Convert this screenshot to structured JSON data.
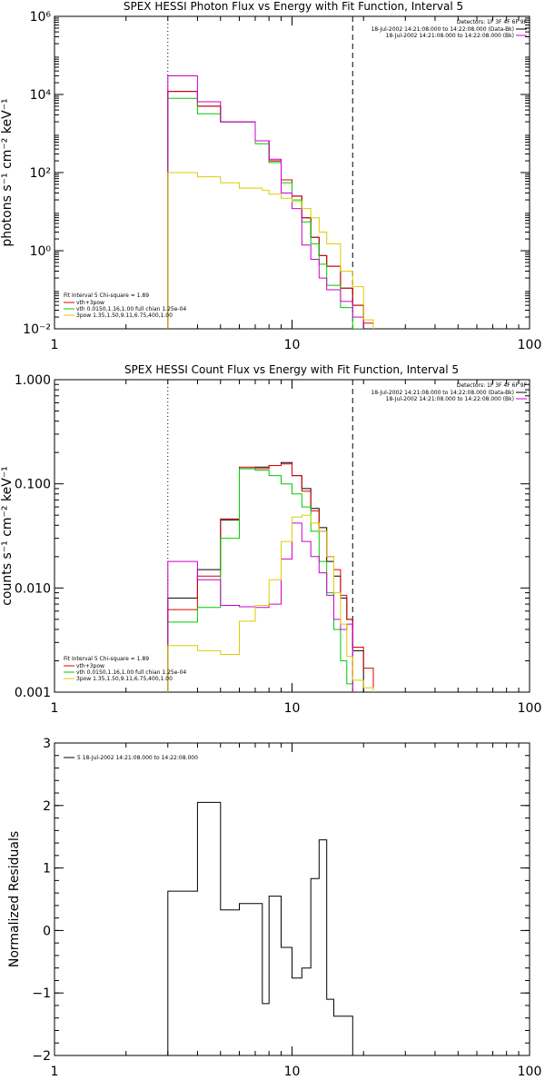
{
  "chart_data": [
    {
      "type": "line",
      "title": "SPEX HESSI Photon Flux vs Energy with Fit Function, Interval 5",
      "ylabel": "photons s⁻¹ cm⁻² keV⁻¹",
      "xscale": "log",
      "yscale": "log",
      "xlim": [
        1,
        100
      ],
      "ylim": [
        0.01,
        1000000
      ],
      "x_ticks": [
        "1",
        "10",
        "100"
      ],
      "y_ticks": [
        "10⁻²",
        "10⁰",
        "10²",
        "10⁴",
        "10⁶"
      ],
      "vlines": [
        {
          "x": 3.0,
          "style": "dotted"
        },
        {
          "x": 18.0,
          "style": "dashed"
        }
      ],
      "legend_right": {
        "header": "Detectors: 1F 3F 4F 6F 9F",
        "entries": [
          {
            "label": "18-Jul-2002 14:21:08.000 to 14:22:08.000 (Data-Bk)",
            "color": "#000000"
          },
          {
            "label": "18-Jul-2002 14:21:08.000 to 14:22:08.000 (Bk)",
            "color": "#cc00cc"
          }
        ]
      },
      "legend_left": {
        "header": "Fit Interval 5   Chi-square = 1.89",
        "entries": [
          {
            "label": "vth+3pow",
            "color": "#dd0000"
          },
          {
            "label": "vth 0.0150,1.16,1.00  full chian 1.25e-04",
            "color": "#00cc00"
          },
          {
            "label": "3pow 1.35,1.50,9.11,6.75,400,1.00",
            "color": "#ddcc00"
          }
        ]
      },
      "bin_edges": [
        3.0,
        3.5,
        4.0,
        5.0,
        6.0,
        7.0,
        7.5,
        8.0,
        9.0,
        10.0,
        11.0,
        12.0,
        13.0,
        14.0,
        16.0,
        18.0,
        20.0,
        22.0
      ],
      "series": [
        {
          "color": "#000000",
          "values": [
            12000,
            12000,
            5000,
            2000,
            2000,
            650,
            650,
            200,
            65,
            25,
            7,
            2.2,
            0.75,
            0.4,
            0.11,
            0.04,
            null
          ]
        },
        {
          "color": "#dd0000",
          "values": [
            12000,
            12000,
            5000,
            2000,
            2000,
            650,
            650,
            200,
            65,
            25,
            7,
            2.2,
            0.75,
            0.4,
            0.11,
            0.04,
            0.014
          ]
        },
        {
          "color": "#00cc00",
          "values": [
            8000,
            8000,
            3200,
            2000,
            2000,
            550,
            550,
            180,
            55,
            20,
            5.5,
            1.5,
            0.45,
            0.13,
            0.035,
            0.009,
            null
          ]
        },
        {
          "color": "#cc00cc",
          "values": [
            30000,
            30000,
            6500,
            2000,
            2000,
            650,
            650,
            220,
            30,
            12,
            1.4,
            0.6,
            0.2,
            0.1,
            0.05,
            0.02,
            null
          ]
        },
        {
          "color": "#ddcc00",
          "values": [
            100,
            100,
            78,
            55,
            40,
            40,
            35,
            28,
            22,
            18,
            12,
            7,
            3,
            1.5,
            0.3,
            0.12,
            0.017
          ]
        }
      ]
    },
    {
      "type": "line",
      "title": "SPEX HESSI Count Flux vs Energy with Fit Function, Interval 5",
      "ylabel": "counts s⁻¹ cm⁻² keV⁻¹",
      "xscale": "log",
      "yscale": "log",
      "xlim": [
        1,
        100
      ],
      "ylim": [
        0.001,
        1.0
      ],
      "x_ticks": [
        "1",
        "10",
        "100"
      ],
      "y_ticks": [
        "0.001",
        "0.010",
        "0.100",
        "1.000"
      ],
      "vlines": [
        {
          "x": 3.0,
          "style": "dotted"
        },
        {
          "x": 18.0,
          "style": "dashed"
        }
      ],
      "legend_right": {
        "header": "Detectors: 1F 3F 4F 6F 9F",
        "entries": [
          {
            "label": "18-Jul-2002 14:21:08.000 to 14:22:08.000 (Data-Bk)",
            "color": "#000000"
          },
          {
            "label": "18-Jul-2002 14:21:08.000 to 14:22:08.000 (Bk)",
            "color": "#cc00cc"
          }
        ]
      },
      "legend_left": {
        "header": "Fit Interval 5   Chi-square = 1.89",
        "entries": [
          {
            "label": "vth+3pow",
            "color": "#dd0000"
          },
          {
            "label": "vth 0.0150,1.16,1.00  full chian 1.25e-04",
            "color": "#00cc00"
          },
          {
            "label": "3pow 1.35,1.50,9.11,6.75,400,1.00",
            "color": "#ddcc00"
          }
        ]
      },
      "bin_edges": [
        3.0,
        4.0,
        5.0,
        6.0,
        7.0,
        8.0,
        9.0,
        10.0,
        11.0,
        12.0,
        13.0,
        14.0,
        15.0,
        16.0,
        17.0,
        18.0,
        20.0,
        22.0
      ],
      "series": [
        {
          "color": "#000000",
          "values": [
            0.008,
            0.015,
            0.045,
            0.14,
            0.145,
            0.15,
            0.16,
            0.12,
            0.09,
            0.058,
            0.038,
            0.018,
            0.013,
            0.008,
            0.005,
            0.0025,
            null
          ]
        },
        {
          "color": "#dd0000",
          "values": [
            0.0062,
            0.013,
            0.046,
            0.145,
            0.14,
            0.15,
            0.155,
            0.12,
            0.085,
            0.055,
            0.035,
            0.02,
            0.015,
            0.0085,
            0.005,
            0.0027,
            0.0017
          ]
        },
        {
          "color": "#00cc00",
          "values": [
            0.0047,
            0.0065,
            0.03,
            0.14,
            0.135,
            0.12,
            0.1,
            0.08,
            0.06,
            0.035,
            0.018,
            0.009,
            0.004,
            0.002,
            0.0012,
            null,
            null
          ]
        },
        {
          "color": "#cc00cc",
          "values": [
            0.018,
            0.012,
            0.0068,
            0.0066,
            0.0065,
            0.007,
            0.019,
            0.042,
            0.028,
            0.02,
            0.014,
            0.0085,
            0.005,
            0.004,
            0.0045,
            null,
            null
          ]
        },
        {
          "color": "#ddcc00",
          "values": [
            0.0028,
            0.0025,
            0.0023,
            0.0048,
            0.0068,
            0.012,
            0.028,
            0.048,
            0.05,
            0.042,
            0.035,
            0.02,
            0.009,
            0.0045,
            0.0022,
            0.0013,
            0.0011
          ]
        }
      ]
    },
    {
      "type": "line",
      "ylabel": "Normalized Residuals",
      "xscale": "log",
      "yscale": "linear",
      "xlim": [
        1,
        100
      ],
      "ylim": [
        -2,
        3
      ],
      "x_ticks": [
        "1",
        "10",
        "100"
      ],
      "y_ticks": [
        "−2",
        "−1",
        "0",
        "1",
        "2",
        "3"
      ],
      "legend": {
        "entries": [
          {
            "label": "5  18-Jul-2002 14:21:08.000 to 14:22:08.000",
            "color": "#000000"
          }
        ]
      },
      "bin_edges": [
        3.0,
        4.0,
        5.0,
        6.0,
        7.0,
        7.5,
        8.0,
        8.5,
        9.0,
        10.0,
        11.0,
        12.0,
        13.0,
        14.0,
        15.0,
        16.0,
        17.0,
        18.0
      ],
      "series": [
        {
          "color": "#000000",
          "values": [
            0.63,
            2.05,
            0.33,
            0.43,
            0.43,
            -1.17,
            0.55,
            0.55,
            -0.27,
            -0.76,
            -0.6,
            0.83,
            1.45,
            -1.1,
            -1.37,
            -1.37,
            -1.37
          ]
        }
      ]
    }
  ]
}
